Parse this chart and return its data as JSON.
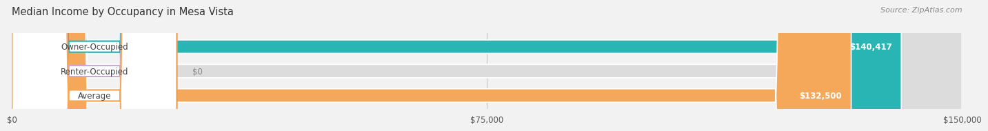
{
  "title": "Median Income by Occupancy in Mesa Vista",
  "source": "Source: ZipAtlas.com",
  "categories": [
    "Owner-Occupied",
    "Renter-Occupied",
    "Average"
  ],
  "values": [
    140417,
    0,
    132500
  ],
  "bar_colors": [
    "#2ab5b5",
    "#c9a8d4",
    "#f5a85a"
  ],
  "value_labels": [
    "$140,417",
    "$0",
    "$132,500"
  ],
  "xlim": [
    0,
    150000
  ],
  "xticks": [
    0,
    75000,
    150000
  ],
  "xtick_labels": [
    "$0",
    "$75,000",
    "$150,000"
  ],
  "bar_height": 0.55,
  "background_color": "#f2f2f2"
}
